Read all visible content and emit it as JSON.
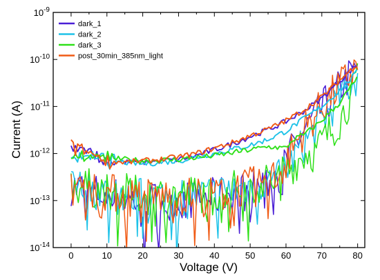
{
  "chart_data": {
    "type": "line",
    "title": "",
    "xlabel": "Voltage (V)",
    "ylabel": "Current (A)",
    "xlim": [
      -5,
      82
    ],
    "ylim": [
      1e-14,
      1e-09
    ],
    "yscale": "log",
    "x_ticks": [
      0,
      10,
      20,
      30,
      40,
      50,
      60,
      70,
      80
    ],
    "y_tick_labels": [
      {
        "base": "10",
        "exp": "-9"
      },
      {
        "base": "10",
        "exp": "-10"
      },
      {
        "base": "10",
        "exp": "-11"
      },
      {
        "base": "10",
        "exp": "-12"
      },
      {
        "base": "10",
        "exp": "-13"
      },
      {
        "base": "10",
        "exp": "-14"
      }
    ],
    "grid": false,
    "legend_position": "top-left",
    "series": [
      {
        "name": "dark_1",
        "color": "#4a1fd6",
        "upper": [
          [
            0,
            1.3e-12
          ],
          [
            5,
            1e-12
          ],
          [
            10,
            7e-13
          ],
          [
            15,
            6.5e-13
          ],
          [
            20,
            6.5e-13
          ],
          [
            25,
            7e-13
          ],
          [
            30,
            7.5e-13
          ],
          [
            35,
            9e-13
          ],
          [
            40,
            1.2e-12
          ],
          [
            45,
            1.6e-12
          ],
          [
            50,
            2.3e-12
          ],
          [
            55,
            3.2e-12
          ],
          [
            60,
            4.8e-12
          ],
          [
            65,
            8e-12
          ],
          [
            70,
            1.5e-11
          ],
          [
            75,
            3.5e-11
          ],
          [
            80,
            8e-11
          ]
        ],
        "lower": [
          [
            0,
            2e-13
          ],
          [
            10,
            1.3e-13
          ],
          [
            20,
            1e-13
          ],
          [
            30,
            1e-13
          ],
          [
            40,
            1.2e-13
          ],
          [
            50,
            1.8e-13
          ],
          [
            55,
            2.5e-13
          ],
          [
            58,
            3.5e-13
          ],
          [
            60,
            6e-13
          ],
          [
            62,
            1.3e-12
          ],
          [
            65,
            3e-12
          ],
          [
            70,
            9e-12
          ],
          [
            75,
            2.5e-11
          ],
          [
            80,
            7e-11
          ]
        ]
      },
      {
        "name": "dark_2",
        "color": "#1ec2e8",
        "upper": [
          [
            0,
            9e-13
          ],
          [
            10,
            7e-13
          ],
          [
            20,
            6e-13
          ],
          [
            30,
            7e-13
          ],
          [
            40,
            1e-12
          ],
          [
            50,
            1.5e-12
          ],
          [
            55,
            2e-12
          ],
          [
            60,
            3e-12
          ],
          [
            65,
            5.5e-12
          ],
          [
            70,
            1e-11
          ],
          [
            75,
            2.2e-11
          ],
          [
            80,
            5.5e-11
          ]
        ],
        "lower": [
          [
            0,
            2e-13
          ],
          [
            10,
            1.5e-13
          ],
          [
            20,
            1.2e-13
          ],
          [
            30,
            1.2e-13
          ],
          [
            40,
            1.4e-13
          ],
          [
            50,
            2e-13
          ],
          [
            58,
            3e-13
          ],
          [
            60,
            4.5e-13
          ],
          [
            63,
            1e-12
          ],
          [
            66,
            2e-12
          ],
          [
            70,
            5e-12
          ],
          [
            75,
            1.5e-11
          ],
          [
            80,
            4.5e-11
          ]
        ]
      },
      {
        "name": "dark_3",
        "color": "#2ee018",
        "upper": [
          [
            0,
            1e-12
          ],
          [
            10,
            8e-13
          ],
          [
            20,
            7e-13
          ],
          [
            30,
            7.5e-13
          ],
          [
            40,
            9e-13
          ],
          [
            50,
            1.2e-12
          ],
          [
            55,
            1.4e-12
          ],
          [
            60,
            1.3e-12
          ],
          [
            62,
            2e-12
          ],
          [
            65,
            2.5e-12
          ],
          [
            70,
            5e-12
          ],
          [
            75,
            1.2e-11
          ],
          [
            80,
            4.2e-11
          ]
        ],
        "lower": [
          [
            0,
            2.2e-13
          ],
          [
            10,
            1.6e-13
          ],
          [
            20,
            1.3e-13
          ],
          [
            30,
            1.3e-13
          ],
          [
            40,
            1.5e-13
          ],
          [
            50,
            2e-13
          ],
          [
            58,
            3e-13
          ],
          [
            60,
            4e-13
          ],
          [
            63,
            7e-13
          ],
          [
            66,
            1.1e-12
          ],
          [
            68,
            1e-12
          ],
          [
            70,
            1.8e-12
          ],
          [
            75,
            5e-12
          ],
          [
            80,
            3.5e-11
          ]
        ]
      },
      {
        "name": "post_30min_385nm_light",
        "color": "#f05a14",
        "upper": [
          [
            0,
            1.4e-12
          ],
          [
            5,
            1e-12
          ],
          [
            10,
            7e-13
          ],
          [
            15,
            6.5e-13
          ],
          [
            20,
            7e-13
          ],
          [
            25,
            7.5e-13
          ],
          [
            30,
            8.5e-13
          ],
          [
            35,
            1e-12
          ],
          [
            40,
            1.3e-12
          ],
          [
            45,
            1.7e-12
          ],
          [
            50,
            2.4e-12
          ],
          [
            55,
            3.3e-12
          ],
          [
            60,
            5e-12
          ],
          [
            65,
            8.5e-12
          ],
          [
            70,
            1.6e-11
          ],
          [
            75,
            3.6e-11
          ],
          [
            80,
            8.2e-11
          ]
        ],
        "lower": [
          [
            0,
            2.3e-13
          ],
          [
            10,
            1.5e-13
          ],
          [
            20,
            1.2e-13
          ],
          [
            30,
            1.2e-13
          ],
          [
            40,
            1.4e-13
          ],
          [
            50,
            2e-13
          ],
          [
            55,
            2.6e-13
          ],
          [
            58,
            3.5e-13
          ],
          [
            60,
            6.5e-13
          ],
          [
            62,
            1.4e-12
          ],
          [
            65,
            3.2e-12
          ],
          [
            70,
            1e-11
          ],
          [
            75,
            2.7e-11
          ],
          [
            80,
            7.5e-11
          ]
        ]
      }
    ]
  }
}
